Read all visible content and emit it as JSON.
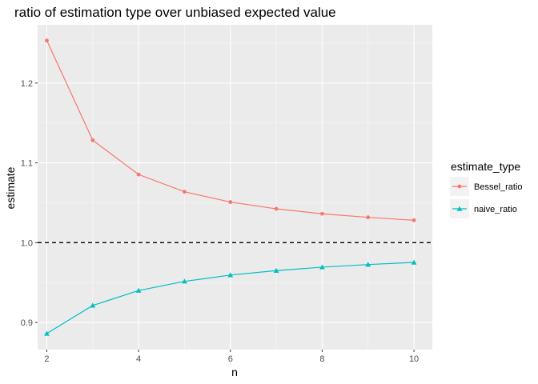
{
  "chart_data": {
    "type": "line",
    "title": "ratio of estimation type over unbiased expected value",
    "xlabel": "n",
    "ylabel": "estimate",
    "x": [
      2,
      3,
      4,
      5,
      6,
      7,
      8,
      9,
      10
    ],
    "series": [
      {
        "name": "Bessel_ratio",
        "values": [
          1.2533,
          1.1284,
          1.0854,
          1.0638,
          1.0509,
          1.0424,
          1.0362,
          1.0317,
          1.0281
        ],
        "color": "#F8766D",
        "marker": "circle"
      },
      {
        "name": "naive_ratio",
        "values": [
          0.8862,
          0.9213,
          0.94,
          0.9515,
          0.9594,
          0.965,
          0.9693,
          0.9726,
          0.9753
        ],
        "color": "#00BFC4",
        "marker": "triangle"
      }
    ],
    "hline": {
      "y": 1.0,
      "style": "dashed",
      "color": "#000000"
    },
    "xlim": [
      1.8,
      10.4
    ],
    "ylim": [
      0.866,
      1.273
    ],
    "xticks": [
      2,
      4,
      6,
      8,
      10
    ],
    "xtick_labels": [
      "2",
      "4",
      "6",
      "8",
      "10"
    ],
    "yticks": [
      0.9,
      1.0,
      1.1,
      1.2
    ],
    "ytick_labels": [
      "0.9",
      "1.0",
      "1.1",
      "1.2"
    ],
    "grid": true,
    "legend": {
      "title": "estimate_type",
      "position": "right"
    },
    "panel_background": "#EBEBEB"
  }
}
